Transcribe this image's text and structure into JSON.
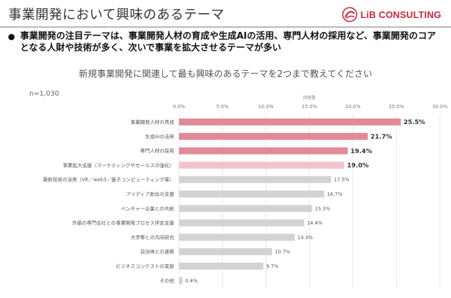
{
  "header": {
    "title": "事業開発において興味のあるテーマ",
    "logo_text": "LiB CONSULTING",
    "logo_color": "#c8283c"
  },
  "summary": {
    "text": "事業開発の注目テーマは、事業開発人材の育成や生成AIの活用、専門人材の採用など、事業開発のコアとなる人財や技術が多く、次いで事業を拡大させるテーマが多い"
  },
  "question": "新規事業開発に関連して最も興味のあるテーマを2つまで教えてください",
  "sample_size": "n=1,030",
  "chart_data": {
    "type": "bar",
    "orientation": "horizontal",
    "axis_title": "回答数",
    "xlim": [
      0,
      30
    ],
    "ticks": [
      "0.0%",
      "5.0%",
      "10.0%",
      "15.0%",
      "20.0%",
      "25.0%",
      "30.0%"
    ],
    "grid": true,
    "categories": [
      "事業開発人材の育成",
      "生成AIの活用",
      "専門人材の採用",
      "事業拡大支援（マーケティングやセールスの強化）",
      "最新技術の活用（VR／web3／量子コンピューティング等）",
      "アイディア創出の支援",
      "ベンチャー企業との共創",
      "外部の専門会社との事業開発プロセス伴走支援",
      "大学等との共同研究",
      "自治体との連携",
      "ビジネスコンテストの実施",
      "その他"
    ],
    "values": [
      25.5,
      21.7,
      19.4,
      19.0,
      17.5,
      16.7,
      15.3,
      14.4,
      13.3,
      10.7,
      9.7,
      0.4
    ],
    "value_labels": [
      "25.5%",
      "21.7%",
      "19.4%",
      "19.0%",
      "17.5%",
      "16.7%",
      "15.3%",
      "14.4%",
      "13.3%",
      "10.7%",
      "9.7%",
      "0.4%"
    ],
    "colors": [
      "#e28a98",
      "#e28a98",
      "#e28a98",
      "#f1c4cc",
      "#d3d3d3",
      "#d3d3d3",
      "#d3d3d3",
      "#d3d3d3",
      "#d3d3d3",
      "#d3d3d3",
      "#d3d3d3",
      "#d3d3d3"
    ],
    "highlight_top": 4
  }
}
